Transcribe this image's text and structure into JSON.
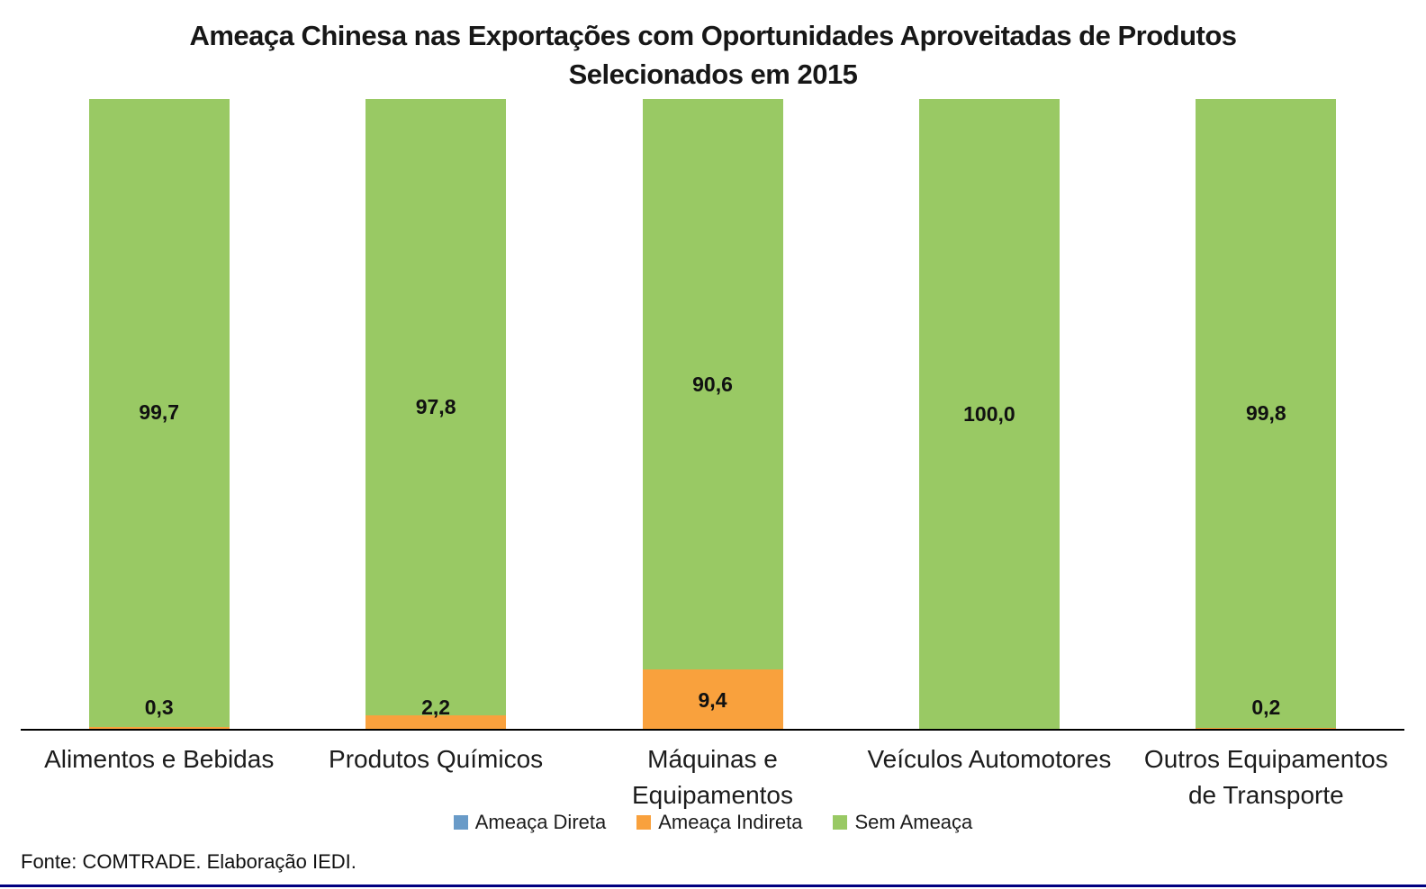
{
  "page": {
    "background": "#FFFFFF",
    "bottom_line_color": "#000080"
  },
  "footer": {
    "source_text": "Fonte: COMTRADE. Elaboração IEDI."
  },
  "chart_data": {
    "type": "bar",
    "stacked": true,
    "orientation": "vertical",
    "title": "Ameaça Chinesa nas Exportações com Oportunidades Aproveitadas de Produtos Selecionados em 2015",
    "categories": [
      "Alimentos e Bebidas",
      "Produtos Químicos",
      "Máquinas e Equipamentos",
      "Veículos Automotores",
      "Outros Equipamentos de Transporte"
    ],
    "series": [
      {
        "name": "Ameaça Direta",
        "color": "#699BC8",
        "values": [
          0.0,
          0.0,
          0.0,
          0.0,
          0.0
        ]
      },
      {
        "name": "Ameaça Indireta",
        "color": "#F9A13D",
        "values": [
          0.3,
          2.2,
          9.4,
          0.0,
          0.2
        ]
      },
      {
        "name": "Sem Ameaça",
        "color": "#99C964",
        "values": [
          99.7,
          97.8,
          90.6,
          100.0,
          99.8
        ]
      }
    ],
    "value_labels": {
      "ameaca_indireta": [
        "0,3",
        "2,2",
        "9,4",
        "",
        "0,2"
      ],
      "sem_ameaca": [
        "99,7",
        "97,8",
        "90,6",
        "100,0",
        "99,8"
      ]
    },
    "ylim": [
      0,
      100
    ],
    "gridlines": false,
    "y_axis_visible": false,
    "legend_position": "bottom",
    "axis_line_color": "#000000"
  }
}
